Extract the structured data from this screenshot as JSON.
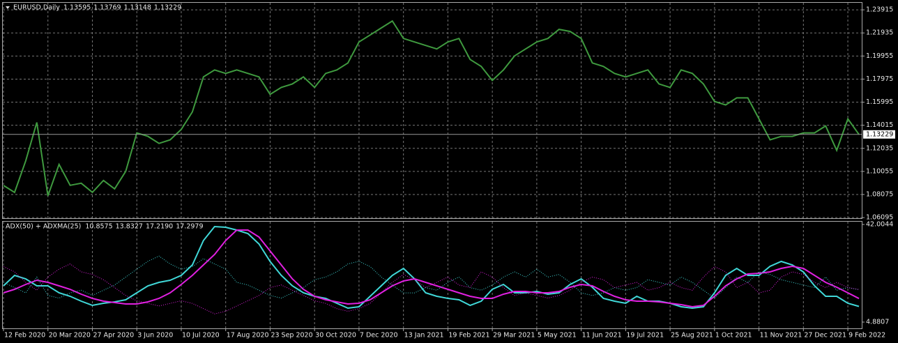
{
  "chart_data": [
    {
      "type": "line",
      "title": "EURUSD,Daily",
      "ohlc": [
        1.13595,
        1.13769,
        1.13148,
        1.13229
      ],
      "last_price": 1.13229,
      "categories": [
        "12 Feb 2020",
        null,
        null,
        null,
        "20 Mar 2020",
        null,
        null,
        null,
        "27 Apr 2020",
        null,
        null,
        null,
        "3 Jun 2020",
        null,
        null,
        null,
        "10 Jul 2020",
        null,
        null,
        null,
        "17 Aug 2020",
        null,
        null,
        null,
        "23 Sep 2020",
        null,
        null,
        null,
        "30 Oct 2020",
        null,
        null,
        null,
        "7 Dec 2020",
        null,
        null,
        null,
        "13 Jan 2021",
        null,
        null,
        null,
        "19 Feb 2021",
        null,
        null,
        null,
        "29 Mar 2021",
        null,
        null,
        null,
        "5 May 2021",
        null,
        null,
        null,
        "11 Jun 2021",
        null,
        null,
        null,
        "19 Jul 2021",
        null,
        null,
        null,
        "25 Aug 2021",
        null,
        null,
        null,
        "1 Oct 2021",
        null,
        null,
        null,
        "11 Nov 2021",
        null,
        null,
        null,
        "27 Dec 2021",
        null,
        null,
        null,
        "9 Feb 2022",
        null
      ],
      "series": [
        {
          "color": "#3f9a3f",
          "values": [
            1.0885,
            1.0825,
            1.1096,
            1.1426,
            1.0796,
            1.1066,
            1.0886,
            1.0904,
            1.0826,
            1.0928,
            1.0856,
            1.1006,
            1.1336,
            1.1306,
            1.1246,
            1.1276,
            1.1366,
            1.1516,
            1.1816,
            1.1876,
            1.1846,
            1.1876,
            1.1846,
            1.1816,
            1.1666,
            1.1726,
            1.1756,
            1.1816,
            1.1726,
            1.1846,
            1.1876,
            1.1936,
            1.2116,
            1.2176,
            1.2236,
            1.2296,
            1.2146,
            1.2116,
            1.2086,
            1.2056,
            1.2116,
            1.2146,
            1.1966,
            1.1906,
            1.1786,
            1.1876,
            1.1996,
            1.2056,
            1.2116,
            1.2146,
            1.2224,
            1.2206,
            1.2146,
            1.1936,
            1.1906,
            1.1846,
            1.1816,
            1.1846,
            1.1876,
            1.1756,
            1.1726,
            1.1876,
            1.1846,
            1.1756,
            1.1606,
            1.1576,
            1.1636,
            1.1636,
            1.1456,
            1.1276,
            1.1306,
            1.1306,
            1.1336,
            1.1336,
            1.1396,
            1.1186,
            1.1456,
            1.13229
          ]
        }
      ],
      "ylim": [
        1.0604,
        1.2458
      ],
      "yticks": [
        1.23915,
        1.21935,
        1.19955,
        1.17975,
        1.15995,
        1.14015,
        1.12035,
        1.10055,
        1.08075,
        1.06095
      ],
      "grid": true
    },
    {
      "type": "line",
      "title": "ADX(50) + ADXMA(25)",
      "readings": [
        10.8575,
        13.8327,
        {
          "value": 17.219,
          "label": "17.2190"
        },
        17.2979
      ],
      "series": [
        {
          "color": "#40d8d8",
          "values": [
            18.67,
            22.64,
            21.32,
            18.67,
            18.67,
            16.02,
            14.69,
            12.83,
            11.24,
            12.04,
            12.57,
            13.36,
            16.02,
            18.67,
            19.99,
            20.79,
            22.64,
            26.62,
            35.9,
            41.21,
            40.94,
            39.88,
            38.56,
            34.58,
            27.95,
            22.64,
            18.67,
            16.02,
            14.69,
            13.89,
            12.04,
            10.18,
            10.71,
            14.69,
            18.67,
            22.64,
            25.29,
            21.32,
            16.02,
            14.69,
            13.89,
            13.36,
            11.24,
            12.83,
            17.34,
            19.19,
            16.02,
            16.02,
            16.55,
            15.49,
            16.02,
            19.19,
            21.32,
            18.14,
            13.89,
            12.83,
            12.04,
            14.69,
            12.83,
            12.83,
            12.04,
            10.71,
            10.18,
            10.71,
            16.02,
            22.64,
            25.29,
            22.64,
            22.64,
            26.09,
            27.95,
            26.62,
            23.97,
            18.67,
            14.69,
            14.69,
            12.04,
            10.8575
          ]
        },
        {
          "color": "#e020e0",
          "values": [
            16.02,
            17.34,
            19.19,
            20.79,
            19.99,
            18.67,
            17.34,
            15.49,
            13.89,
            12.83,
            12.3,
            11.77,
            11.77,
            12.57,
            13.89,
            16.02,
            19.19,
            22.64,
            26.62,
            30.6,
            35.9,
            39.88,
            39.88,
            37.23,
            31.93,
            26.62,
            21.32,
            17.34,
            14.69,
            13.36,
            12.57,
            11.77,
            12.04,
            13.36,
            16.02,
            18.67,
            20.52,
            21.32,
            19.99,
            18.67,
            17.34,
            16.02,
            14.69,
            13.89,
            13.89,
            15.49,
            16.55,
            16.55,
            16.02,
            16.02,
            16.55,
            18.14,
            19.19,
            18.67,
            16.55,
            14.69,
            13.36,
            12.83,
            12.83,
            12.57,
            12.04,
            11.5,
            10.71,
            11.24,
            14.69,
            18.67,
            21.32,
            23.17,
            23.43,
            23.97,
            25.29,
            26.09,
            25.29,
            22.64,
            19.99,
            18.14,
            16.02,
            13.8327
          ]
        },
        {
          "color": "#40d8d8",
          "dashed": true,
          "values": [
            20,
            18,
            16,
            22,
            15,
            14,
            16,
            17,
            15,
            17,
            19,
            22,
            25,
            28,
            30,
            27,
            25,
            26,
            29,
            27,
            25,
            20,
            19,
            17,
            15,
            14,
            16,
            18,
            21,
            22,
            24,
            27,
            28,
            26,
            22,
            19,
            16,
            16,
            18,
            17,
            20,
            22,
            18,
            17,
            19,
            22,
            24,
            22,
            25,
            22,
            23,
            20,
            16,
            15,
            16,
            18,
            17,
            18,
            21,
            20,
            19,
            22,
            20,
            17,
            14,
            18,
            22,
            20,
            24,
            23,
            21,
            20,
            19,
            18,
            22,
            17,
            18,
            17.219
          ]
        },
        {
          "color": "#e020e0",
          "dashed": true,
          "values": [
            26,
            24,
            20,
            17,
            22,
            25,
            27,
            24,
            23,
            21,
            18,
            15,
            13,
            12,
            11,
            12,
            13,
            12,
            10,
            8,
            9,
            11,
            13,
            15,
            18,
            19,
            17,
            15,
            13,
            12,
            10,
            9,
            10,
            12,
            16,
            20,
            23,
            21,
            18,
            20,
            22,
            19,
            18,
            24,
            22,
            18,
            15,
            16,
            15,
            14,
            15,
            17,
            20,
            22,
            21,
            18,
            19,
            20,
            17,
            18,
            20,
            18,
            17,
            22,
            26,
            24,
            18,
            20,
            16,
            17,
            22,
            24,
            23,
            20,
            18,
            20,
            18,
            17.2979
          ]
        }
      ],
      "ylim": [
        4.8807,
        42.0044
      ],
      "yticks": [
        42.0044,
        4.8807
      ]
    }
  ]
}
